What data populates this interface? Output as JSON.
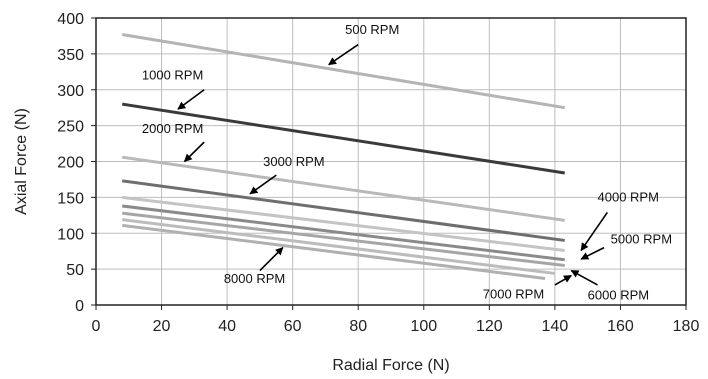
{
  "chart_data": {
    "type": "line",
    "xlabel": "Radial Force (N)",
    "ylabel": "Axial Force (N)",
    "xlim": [
      0,
      180
    ],
    "ylim": [
      0,
      400
    ],
    "xticks": [
      0,
      20,
      40,
      60,
      80,
      100,
      120,
      140,
      160,
      180
    ],
    "yticks": [
      0,
      50,
      100,
      150,
      200,
      250,
      300,
      350,
      400
    ],
    "grid": true,
    "legend": "none",
    "series": [
      {
        "name": "500 RPM",
        "x": [
          8,
          143
        ],
        "y": [
          377,
          275
        ],
        "color": "#b4b4b4",
        "width": 3
      },
      {
        "name": "1000 RPM",
        "x": [
          8,
          143
        ],
        "y": [
          280,
          184
        ],
        "color": "#3a3a3a",
        "width": 3
      },
      {
        "name": "2000 RPM",
        "x": [
          8,
          143
        ],
        "y": [
          206,
          118
        ],
        "color": "#b9b9b9",
        "width": 3
      },
      {
        "name": "3000 RPM",
        "x": [
          8,
          143
        ],
        "y": [
          173,
          90
        ],
        "color": "#6e6e6e",
        "width": 3
      },
      {
        "name": "4000 RPM",
        "x": [
          8,
          143
        ],
        "y": [
          150,
          76
        ],
        "color": "#c4c4c4",
        "width": 3
      },
      {
        "name": "5000 RPM",
        "x": [
          8,
          143
        ],
        "y": [
          138,
          63
        ],
        "color": "#8a8a8a",
        "width": 3
      },
      {
        "name": "6000 RPM",
        "x": [
          8,
          143
        ],
        "y": [
          128,
          55
        ],
        "color": "#a6a6a6",
        "width": 3
      },
      {
        "name": "7000 RPM",
        "x": [
          8,
          140
        ],
        "y": [
          119,
          44
        ],
        "color": "#bcbcbc",
        "width": 3
      },
      {
        "name": "8000 RPM",
        "x": [
          8,
          137
        ],
        "y": [
          111,
          37
        ],
        "color": "#b0b0b0",
        "width": 3
      }
    ],
    "annotations": [
      {
        "text": "500 RPM",
        "text_x": 76,
        "text_y": 378,
        "anchor": "start",
        "arrow_from": [
          80,
          363
        ],
        "arrow_to": [
          71,
          335
        ]
      },
      {
        "text": "1000 RPM",
        "text_x": 14,
        "text_y": 314,
        "anchor": "start",
        "arrow_from": [
          33,
          300
        ],
        "arrow_to": [
          25,
          273
        ]
      },
      {
        "text": "2000 RPM",
        "text_x": 14,
        "text_y": 240,
        "anchor": "start",
        "arrow_from": [
          33,
          227
        ],
        "arrow_to": [
          27,
          200
        ]
      },
      {
        "text": "3000 RPM",
        "text_x": 51,
        "text_y": 194,
        "anchor": "start",
        "arrow_from": [
          55,
          181
        ],
        "arrow_to": [
          47,
          155
        ]
      },
      {
        "text": "4000 RPM",
        "text_x": 153,
        "text_y": 144,
        "anchor": "start",
        "arrow_from": [
          156,
          129
        ],
        "arrow_to": [
          148,
          76
        ]
      },
      {
        "text": "5000 RPM",
        "text_x": 157,
        "text_y": 86,
        "anchor": "start",
        "arrow_from": [
          155,
          80
        ],
        "arrow_to": [
          148,
          64
        ]
      },
      {
        "text": "6000 RPM",
        "text_x": 150,
        "text_y": 8,
        "anchor": "start",
        "arrow_from": [
          153,
          28
        ],
        "arrow_to": [
          145,
          48
        ]
      },
      {
        "text": "7000 RPM",
        "text_x": 118,
        "text_y": 9,
        "anchor": "start",
        "arrow_from": [
          140,
          28
        ],
        "arrow_to": [
          145,
          41
        ]
      },
      {
        "text": "8000 RPM",
        "text_x": 39,
        "text_y": 31,
        "anchor": "start",
        "arrow_from": [
          50,
          48
        ],
        "arrow_to": [
          57,
          80
        ]
      }
    ]
  }
}
